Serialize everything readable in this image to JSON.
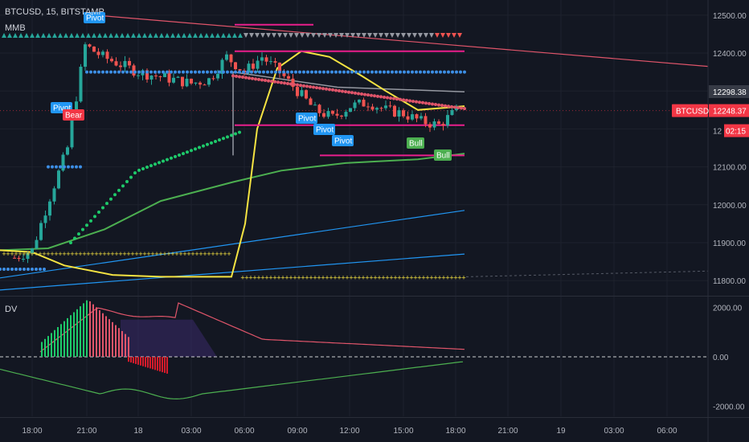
{
  "header": {
    "symbol_line": "BTCUSD, 15, BITSTAMP",
    "indicator_main": "MMB",
    "indicator_sub": "DV"
  },
  "colors": {
    "background": "#131722",
    "grid": "#1e222d",
    "axis_text": "#b2b5be",
    "up": "#26a69a",
    "down": "#ef5350",
    "yellow_line": "#f5e342",
    "green_line": "#4caf50",
    "blue_line": "#2196f3",
    "pivot_label": "#2196f3",
    "bull_label": "#4caf50",
    "bear_label": "#f23645",
    "magenta": "#e91e8c",
    "price_tag": "#f23645"
  },
  "price_axis": {
    "ticks": [
      "12500.00",
      "12400.00",
      "12298.38",
      "12100.00",
      "12000.00",
      "11900.00",
      "11800.00"
    ],
    "current_price_tag": "12248.37",
    "current_price_symbol": "BTCUSD",
    "countdown_tag": "02:15",
    "countdown_prefix": "12"
  },
  "sub_axis": {
    "ticks": [
      "2000.00",
      "0.00",
      "-2000.00"
    ]
  },
  "time_axis": {
    "ticks": [
      "18:00",
      "21:00",
      "18",
      "03:00",
      "06:00",
      "09:00",
      "12:00",
      "15:00",
      "18:00",
      "21:00",
      "19",
      "03:00",
      "06:00"
    ]
  },
  "labels": {
    "pivot": "Pivot",
    "bear": "Bear",
    "bull": "Bull"
  },
  "chart_data": [
    {
      "type": "line",
      "panel": "price",
      "symbol": "BTCUSD",
      "timeframe": "15",
      "exchange": "BITSTAMP",
      "x_ticks": [
        "18:00",
        "21:00",
        "18",
        "03:00",
        "06:00",
        "09:00",
        "12:00",
        "15:00",
        "18:00",
        "21:00",
        "19",
        "03:00",
        "06:00"
      ],
      "ylim": [
        11760,
        12540
      ],
      "last_price": 12248.37,
      "reference_level": 12298.38,
      "grid": true,
      "approx_close_by_hour": [
        {
          "t": "17:00",
          "close": 11860
        },
        {
          "t": "18:00",
          "close": 11880
        },
        {
          "t": "19:00",
          "close": 12020
        },
        {
          "t": "20:00",
          "close": 12150
        },
        {
          "t": "21:00",
          "close": 12420
        },
        {
          "t": "22:00",
          "close": 12390
        },
        {
          "t": "23:00",
          "close": 12370
        },
        {
          "t": "00:00",
          "close": 12350
        },
        {
          "t": "01:00",
          "close": 12340
        },
        {
          "t": "02:00",
          "close": 12330
        },
        {
          "t": "03:00",
          "close": 12320
        },
        {
          "t": "04:00",
          "close": 12330
        },
        {
          "t": "05:00",
          "close": 12390
        },
        {
          "t": "06:00",
          "close": 12350
        },
        {
          "t": "07:00",
          "close": 12390
        },
        {
          "t": "08:00",
          "close": 12350
        },
        {
          "t": "09:00",
          "close": 12300
        },
        {
          "t": "10:00",
          "close": 12250
        },
        {
          "t": "11:00",
          "close": 12230
        },
        {
          "t": "12:00",
          "close": 12260
        },
        {
          "t": "13:00",
          "close": 12270
        },
        {
          "t": "14:00",
          "close": 12250
        },
        {
          "t": "15:00",
          "close": 12240
        },
        {
          "t": "16:00",
          "close": 12220
        },
        {
          "t": "17:00",
          "close": 12210
        },
        {
          "t": "18:00",
          "close": 12248
        }
      ]
    },
    {
      "type": "line",
      "panel": "DV",
      "ylim": [
        -2400,
        2400
      ],
      "y_ticks": [
        "2000.00",
        "0.00",
        "-2000.00"
      ],
      "grid": true
    }
  ]
}
